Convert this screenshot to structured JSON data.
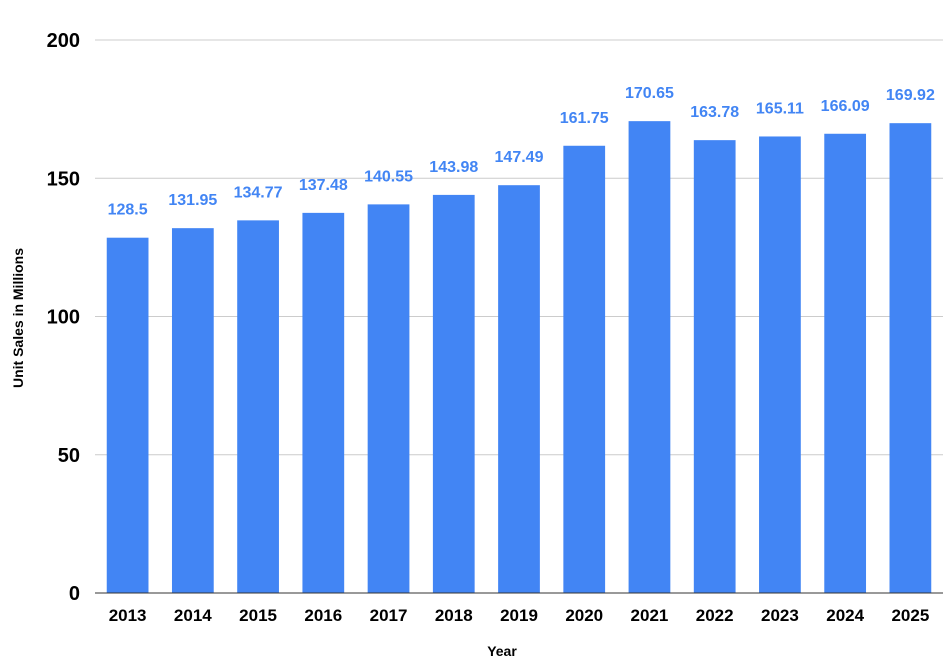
{
  "chart_data": {
    "type": "bar",
    "title": "",
    "xlabel": "Year",
    "ylabel": "Unit Sales in Millions",
    "categories": [
      "2013",
      "2014",
      "2015",
      "2016",
      "2017",
      "2018",
      "2019",
      "2020",
      "2021",
      "2022",
      "2023",
      "2024",
      "2025"
    ],
    "values": [
      128.5,
      131.95,
      134.77,
      137.48,
      140.55,
      143.98,
      147.49,
      161.75,
      170.65,
      163.78,
      165.11,
      166.09,
      169.92
    ],
    "value_labels": [
      "128.5",
      "131.95",
      "134.77",
      "137.48",
      "140.55",
      "143.98",
      "147.49",
      "161.75",
      "170.65",
      "163.78",
      "165.11",
      "166.09",
      "169.92"
    ],
    "ylim": [
      0,
      200
    ],
    "yticks": [
      0,
      50,
      100,
      150,
      200
    ],
    "ytick_labels": [
      "0",
      "50",
      "100",
      "150",
      "200"
    ],
    "grid": true,
    "legend": "none",
    "colors": {
      "bar": "#4285f4",
      "label": "#4285f4",
      "grid": "#cccccc",
      "axis": "#333333"
    }
  }
}
